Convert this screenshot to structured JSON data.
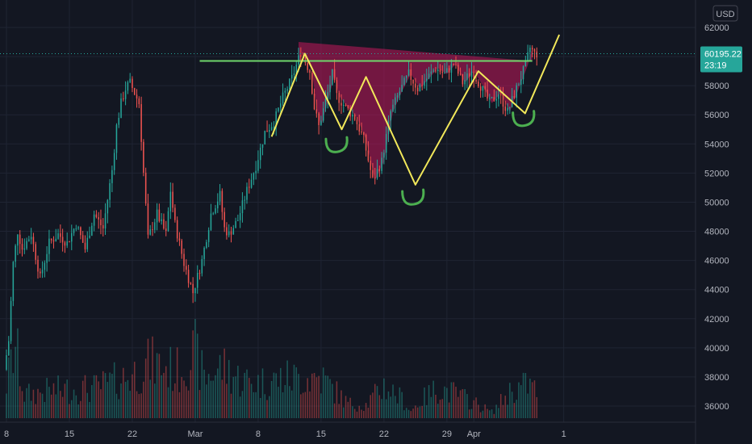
{
  "currency_label": "USD",
  "price_tag": {
    "price": "60195.22",
    "countdown": "23:19"
  },
  "colors": {
    "background": "#131722",
    "up": "#26a69a",
    "down": "#ef5350",
    "grid": "#1f2433",
    "pattern_fill": "#c2185b",
    "pattern_outline": "#f2e85a",
    "neckline": "#6fd66b",
    "marker": "#4caf50",
    "price_tag": "#26a69a"
  },
  "chart_data": {
    "type": "candlestick",
    "title": "",
    "xlabel": "",
    "ylabel": "",
    "ylim": [
      35000,
      63000
    ],
    "y_ticks": [
      36000,
      38000,
      40000,
      42000,
      44000,
      46000,
      48000,
      50000,
      52000,
      54000,
      56000,
      58000,
      60000,
      62000
    ],
    "x_ticks": [
      {
        "label": "8",
        "day": 0
      },
      {
        "label": "15",
        "day": 7
      },
      {
        "label": "22",
        "day": 14
      },
      {
        "label": "Mar",
        "day": 21
      },
      {
        "label": "8",
        "day": 28
      },
      {
        "label": "15",
        "day": 35
      },
      {
        "label": "22",
        "day": 42
      },
      {
        "label": "29",
        "day": 49
      },
      {
        "label": "Apr",
        "day": 52
      },
      {
        "label": "1",
        "day": 62
      }
    ],
    "x_range_days": [
      0,
      62
    ],
    "candle_interval_days": 0.25,
    "price_path": [
      [
        0,
        38500
      ],
      [
        0.5,
        40500
      ],
      [
        1,
        45800
      ],
      [
        1.5,
        48000
      ],
      [
        2,
        46800
      ],
      [
        3,
        47800
      ],
      [
        4,
        44800
      ],
      [
        5,
        47200
      ],
      [
        6,
        47800
      ],
      [
        7,
        47200
      ],
      [
        8,
        48500
      ],
      [
        9,
        46800
      ],
      [
        10,
        49200
      ],
      [
        11,
        48200
      ],
      [
        12,
        52200
      ],
      [
        12.5,
        55200
      ],
      [
        13,
        56800
      ],
      [
        13.5,
        57800
      ],
      [
        14,
        58200
      ],
      [
        15,
        56800
      ],
      [
        15.5,
        52000
      ],
      [
        16,
        47500
      ],
      [
        17,
        49200
      ],
      [
        18,
        47800
      ],
      [
        18.5,
        50800
      ],
      [
        19,
        48500
      ],
      [
        20,
        45800
      ],
      [
        21,
        43800
      ],
      [
        22,
        46000
      ],
      [
        23,
        49200
      ],
      [
        24,
        50500
      ],
      [
        24.5,
        48200
      ],
      [
        25,
        47800
      ],
      [
        26,
        48800
      ],
      [
        27,
        50800
      ],
      [
        28,
        52500
      ],
      [
        29,
        54800
      ],
      [
        30,
        55500
      ],
      [
        31,
        57200
      ],
      [
        32,
        58500
      ],
      [
        33,
        60300
      ],
      [
        34,
        59000
      ],
      [
        34.5,
        56500
      ],
      [
        35,
        55200
      ],
      [
        36,
        57500
      ],
      [
        36.5,
        58800
      ],
      [
        37,
        57300
      ],
      [
        38,
        56500
      ],
      [
        39,
        55800
      ],
      [
        40,
        54300
      ],
      [
        41,
        51500
      ],
      [
        42,
        52800
      ],
      [
        43,
        56200
      ],
      [
        44,
        57600
      ],
      [
        45,
        58800
      ],
      [
        46,
        57800
      ],
      [
        47,
        58500
      ],
      [
        48,
        59200
      ],
      [
        49,
        58800
      ],
      [
        50,
        59500
      ],
      [
        51,
        58200
      ],
      [
        52,
        59000
      ],
      [
        53,
        58000
      ],
      [
        54,
        56800
      ],
      [
        55,
        57500
      ],
      [
        56,
        56200
      ],
      [
        57,
        57800
      ],
      [
        58,
        59400
      ],
      [
        58.5,
        60600
      ],
      [
        59,
        60195
      ]
    ],
    "volume_range": [
      0,
      7000
    ],
    "volume_profile": [
      [
        0,
        2800
      ],
      [
        1,
        6000
      ],
      [
        2,
        1900
      ],
      [
        5,
        2300
      ],
      [
        10,
        2500
      ],
      [
        14,
        3600
      ],
      [
        16,
        4600
      ],
      [
        19,
        3900
      ],
      [
        21,
        5400
      ],
      [
        22,
        3300
      ],
      [
        24,
        4300
      ],
      [
        26,
        3200
      ],
      [
        28,
        2900
      ],
      [
        31,
        3300
      ],
      [
        35,
        3400
      ],
      [
        38,
        1200
      ],
      [
        40,
        1100
      ],
      [
        42,
        2700
      ],
      [
        44,
        1600
      ],
      [
        45,
        600
      ],
      [
        46,
        1400
      ],
      [
        48,
        2500
      ],
      [
        50,
        2000
      ],
      [
        52,
        1300
      ],
      [
        54,
        500
      ],
      [
        56,
        2200
      ],
      [
        58,
        2800
      ],
      [
        59,
        2300
      ]
    ],
    "pattern": {
      "resistance_level": 59700,
      "neckline_start_day": 21.5,
      "neckline_price": 59700,
      "pattern_start_day": 32.5,
      "pattern_end_day": 58.5,
      "outline": [
        [
          29.5,
          54500
        ],
        [
          33.2,
          60200
        ],
        [
          37.3,
          55000
        ],
        [
          40,
          58600
        ],
        [
          45.5,
          51200
        ],
        [
          52.5,
          59000
        ],
        [
          57.7,
          56100
        ],
        [
          61.5,
          61500
        ]
      ],
      "markers": [
        {
          "day": 36.8,
          "price": 53900
        },
        {
          "day": 45.3,
          "price": 50300
        },
        {
          "day": 57.6,
          "price": 55700
        }
      ]
    }
  }
}
